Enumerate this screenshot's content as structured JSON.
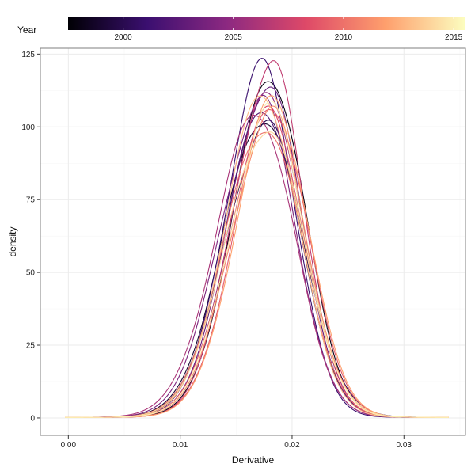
{
  "chart_data": {
    "type": "line",
    "subtype": "density",
    "xlabel": "Derivative",
    "ylabel": "density",
    "xlim": [
      -0.0025,
      0.0355
    ],
    "ylim": [
      -6,
      127
    ],
    "x_ticks": [
      0.0,
      0.01,
      0.02,
      0.03
    ],
    "x_tick_labels": [
      "0.00",
      "0.01",
      "0.02",
      "0.03"
    ],
    "y_ticks": [
      0,
      25,
      50,
      75,
      100,
      125
    ],
    "y_tick_labels": [
      "0",
      "25",
      "50",
      "75",
      "100",
      "125"
    ],
    "grid": true,
    "legend": {
      "title": "Year",
      "placement": "top",
      "type": "colorbar",
      "range": [
        1997.5,
        2015.5
      ],
      "ticks": [
        2000,
        2005,
        2010,
        2015
      ],
      "tick_labels": [
        "2000",
        "2005",
        "2010",
        "2015"
      ],
      "colormap": "magma",
      "stops": [
        "#000004",
        "#3b0f70",
        "#8c2981",
        "#de4968",
        "#fe9f6d",
        "#fcfdbf"
      ]
    },
    "series": [
      {
        "year": 1998,
        "mode": 0.0182,
        "peak": 117,
        "sd_left": 0.0034,
        "sd_right": 0.003
      },
      {
        "year": 1999,
        "mode": 0.0175,
        "peak": 104,
        "sd_left": 0.0036,
        "sd_right": 0.0032
      },
      {
        "year": 2000,
        "mode": 0.0176,
        "peak": 100,
        "sd_left": 0.0036,
        "sd_right": 0.0034
      },
      {
        "year": 2001,
        "mode": 0.0174,
        "peak": 119,
        "sd_left": 0.0033,
        "sd_right": 0.0029
      },
      {
        "year": 2002,
        "mode": 0.0176,
        "peak": 106,
        "sd_left": 0.0035,
        "sd_right": 0.0031
      },
      {
        "year": 2003,
        "mode": 0.0178,
        "peak": 115,
        "sd_left": 0.0034,
        "sd_right": 0.003
      },
      {
        "year": 2004,
        "mode": 0.0172,
        "peak": 108,
        "sd_left": 0.0036,
        "sd_right": 0.0031
      },
      {
        "year": 2005,
        "mode": 0.018,
        "peak": 110,
        "sd_left": 0.0035,
        "sd_right": 0.003
      },
      {
        "year": 2006,
        "mode": 0.017,
        "peak": 105,
        "sd_left": 0.0037,
        "sd_right": 0.0032
      },
      {
        "year": 2007,
        "mode": 0.0181,
        "peak": 121,
        "sd_left": 0.0033,
        "sd_right": 0.0029
      },
      {
        "year": 2008,
        "mode": 0.0179,
        "peak": 103,
        "sd_left": 0.0035,
        "sd_right": 0.0032
      },
      {
        "year": 2009,
        "mode": 0.0183,
        "peak": 107,
        "sd_left": 0.0034,
        "sd_right": 0.0031
      },
      {
        "year": 2010,
        "mode": 0.0176,
        "peak": 101,
        "sd_left": 0.0036,
        "sd_right": 0.0032
      },
      {
        "year": 2011,
        "mode": 0.0181,
        "peak": 104,
        "sd_left": 0.0035,
        "sd_right": 0.0031
      },
      {
        "year": 2012,
        "mode": 0.0184,
        "peak": 108,
        "sd_left": 0.0034,
        "sd_right": 0.0031
      },
      {
        "year": 2013,
        "mode": 0.0175,
        "peak": 111,
        "sd_left": 0.0034,
        "sd_right": 0.0031
      },
      {
        "year": 2014,
        "mode": 0.0177,
        "peak": 100,
        "sd_left": 0.0036,
        "sd_right": 0.0033
      },
      {
        "year": 2015,
        "mode": 0.018,
        "peak": 105,
        "sd_left": 0.0035,
        "sd_right": 0.0031
      }
    ]
  }
}
